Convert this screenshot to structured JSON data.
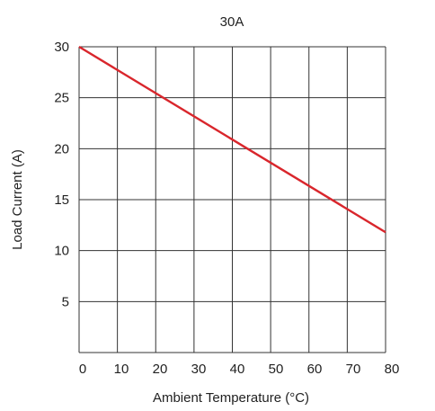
{
  "chart_data": {
    "type": "line",
    "title": "30A",
    "xlabel": "Ambient Temperature  (°C)",
    "ylabel": "Load Current (A)",
    "x_ticks": [
      "0",
      "10",
      "20",
      "30",
      "40",
      "50",
      "60",
      "70",
      "80"
    ],
    "y_ticks": [
      "5",
      "10",
      "15",
      "20",
      "25",
      "30"
    ],
    "xlim": [
      0,
      80
    ],
    "ylim": [
      0,
      30
    ],
    "grid": true,
    "series": [
      {
        "color": "#d9262c",
        "x": [
          0,
          80
        ],
        "y": [
          30,
          11.8
        ]
      }
    ]
  }
}
